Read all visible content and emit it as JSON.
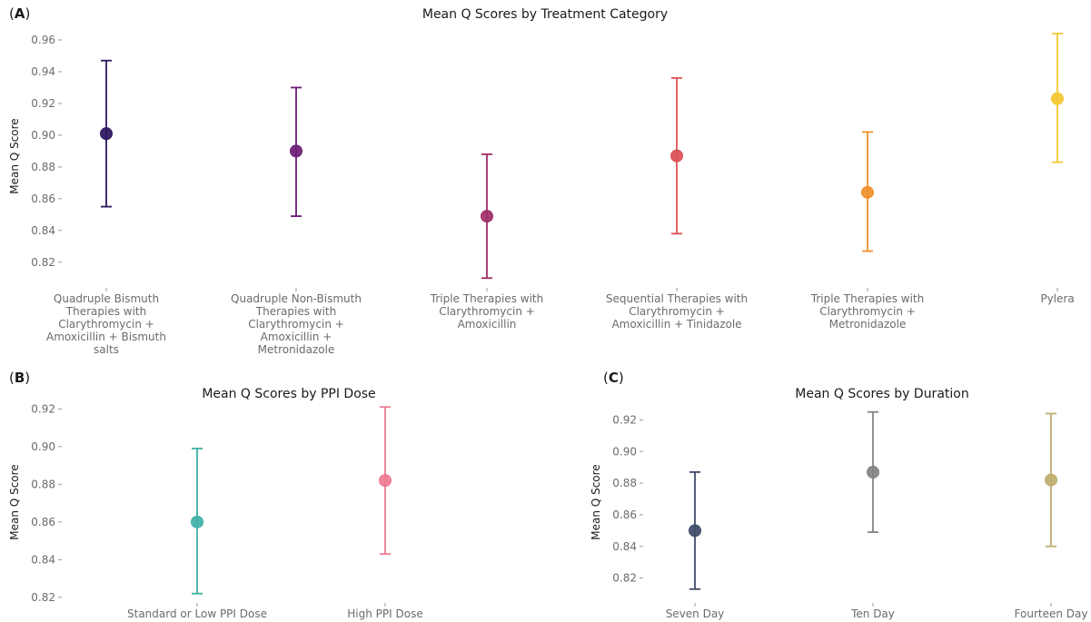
{
  "chart_data": [
    {
      "type": "errorbar",
      "panel_label": "A",
      "title": "Mean Q Scores by Treatment Category",
      "xlabel": "",
      "ylabel": "Mean Q Score",
      "ylim": [
        0.805,
        0.968
      ],
      "yticks": [
        "0.82",
        "0.84",
        "0.86",
        "0.88",
        "0.90",
        "0.92",
        "0.94",
        "0.96"
      ],
      "categories": [
        [
          "Quadruple Bismuth",
          "Therapies with",
          "Clarythromycin +",
          "Amoxicillin + Bismuth",
          "salts"
        ],
        [
          "Quadruple Non-Bismuth",
          "Therapies with",
          "Clarythromycin +",
          "Amoxicillin +",
          "Metronidazole"
        ],
        [
          "Triple Therapies with",
          "Clarythromycin +",
          "Amoxicillin"
        ],
        [
          "Sequential Therapies with",
          "Clarythromycin +",
          "Amoxicillin + Tinidazole"
        ],
        [
          "Triple Therapies with",
          "Clarythromycin +",
          "Metronidazole"
        ],
        [
          "Pylera"
        ]
      ],
      "means": [
        0.901,
        0.89,
        0.849,
        0.887,
        0.864,
        0.923
      ],
      "lower": [
        0.855,
        0.849,
        0.81,
        0.838,
        0.827,
        0.883
      ],
      "upper": [
        0.947,
        0.93,
        0.888,
        0.936,
        0.902,
        0.964
      ],
      "colors": [
        "#2e1660",
        "#6a1b74",
        "#a02c67",
        "#dc5154",
        "#f0902c",
        "#f5c731"
      ],
      "grid": false,
      "legend": "none"
    },
    {
      "type": "errorbar",
      "panel_label": "B",
      "title": "Mean Q Scores by PPI Dose",
      "xlabel": "",
      "ylabel": "Mean Q Score",
      "ylim": [
        0.818,
        0.924
      ],
      "yticks": [
        "0.82",
        "0.84",
        "0.86",
        "0.88",
        "0.90",
        "0.92"
      ],
      "categories": [
        [
          "Standard or Low PPI Dose"
        ],
        [
          "High PPI Dose"
        ]
      ],
      "means": [
        0.86,
        0.882
      ],
      "lower": [
        0.822,
        0.843
      ],
      "upper": [
        0.899,
        0.921
      ],
      "colors": [
        "#3fb0a5",
        "#ef7a92"
      ],
      "grid": false,
      "legend": "none"
    },
    {
      "type": "errorbar",
      "panel_label": "C",
      "title": "Mean Q Scores by Duration",
      "xlabel": "",
      "ylabel": "Mean Q Score",
      "ylim": [
        0.81,
        0.93
      ],
      "yticks": [
        "0.82",
        "0.84",
        "0.86",
        "0.88",
        "0.90",
        "0.92"
      ],
      "categories": [
        [
          "Seven Day"
        ],
        [
          "Ten Day"
        ],
        [
          "Fourteen Day"
        ]
      ],
      "means": [
        0.85,
        0.887,
        0.882
      ],
      "lower": [
        0.813,
        0.849,
        0.84
      ],
      "upper": [
        0.887,
        0.925,
        0.924
      ],
      "colors": [
        "#3e4a68",
        "#838383",
        "#bfac6c"
      ],
      "grid": false,
      "legend": "none"
    }
  ]
}
